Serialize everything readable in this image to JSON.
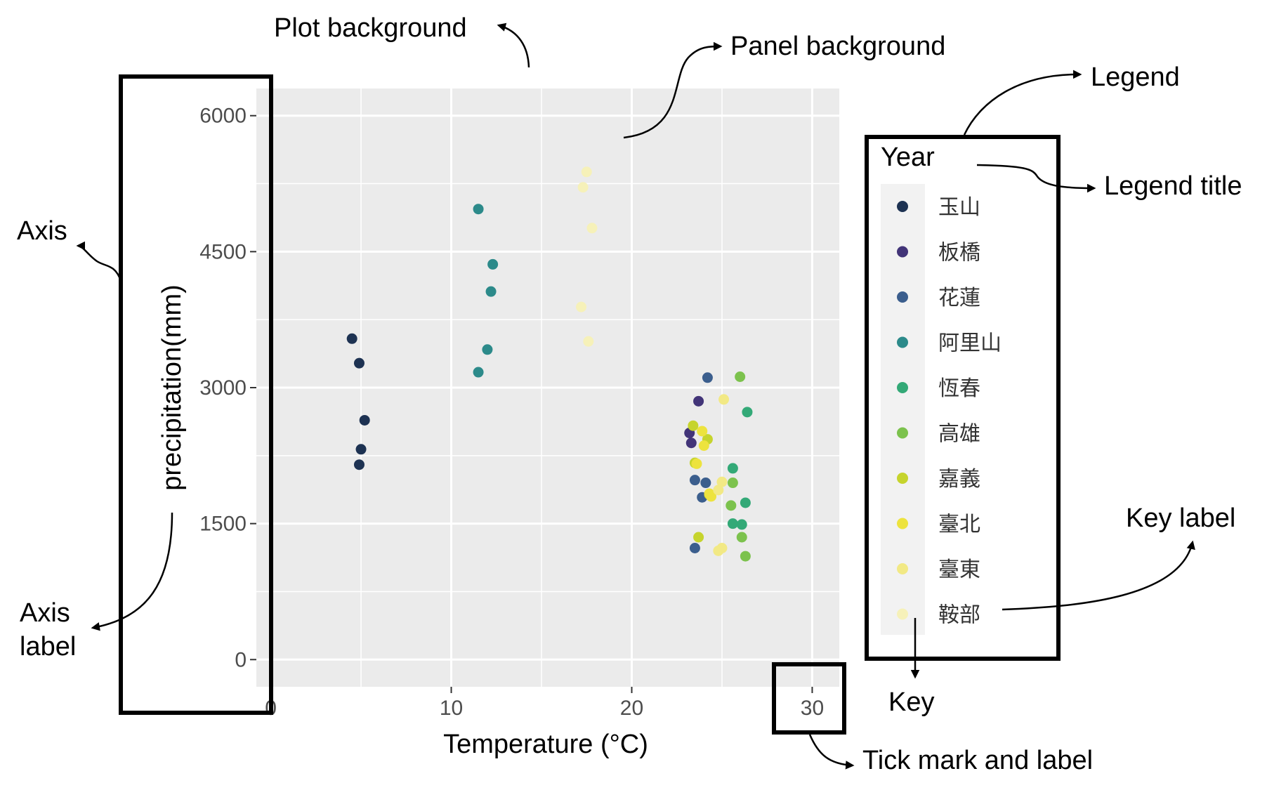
{
  "chart_data": {
    "type": "scatter",
    "title": "",
    "xlabel": "Temperature (°C)",
    "ylabel": "precipitation(mm)",
    "xlim": [
      -0.8,
      31.5
    ],
    "ylim": [
      -300,
      6300
    ],
    "x_ticks": [
      0,
      10,
      20,
      30
    ],
    "y_ticks": [
      0,
      1500,
      3000,
      4500,
      6000
    ],
    "x_tick_labels": [
      "0",
      "10",
      "20",
      "30"
    ],
    "y_tick_labels": [
      "0",
      "1500",
      "3000",
      "4500",
      "6000"
    ],
    "grid": true,
    "background": "#ebebeb",
    "legend": {
      "title": "Year",
      "placement": "right"
    },
    "series": [
      {
        "name": "玉山",
        "color": "#1d3252",
        "points": [
          [
            4.5,
            3540
          ],
          [
            4.9,
            3270
          ],
          [
            5.2,
            2640
          ],
          [
            5.0,
            2320
          ],
          [
            4.9,
            2150
          ]
        ]
      },
      {
        "name": "板橋",
        "color": "#423478",
        "points": [
          [
            23.2,
            2500
          ],
          [
            23.3,
            2390
          ],
          [
            23.7,
            2850
          ]
        ]
      },
      {
        "name": "花蓮",
        "color": "#3b5e8d",
        "points": [
          [
            24.2,
            3110
          ],
          [
            23.5,
            1980
          ],
          [
            24.1,
            1950
          ],
          [
            23.9,
            1790
          ],
          [
            23.5,
            1230
          ]
        ]
      },
      {
        "name": "阿里山",
        "color": "#2c8a8a",
        "points": [
          [
            11.5,
            4970
          ],
          [
            12.3,
            4360
          ],
          [
            12.2,
            4060
          ],
          [
            12.0,
            3420
          ],
          [
            11.5,
            3170
          ]
        ]
      },
      {
        "name": "恆春",
        "color": "#33a977",
        "points": [
          [
            26.4,
            2730
          ],
          [
            25.6,
            2110
          ],
          [
            26.3,
            1730
          ],
          [
            25.6,
            1500
          ],
          [
            26.1,
            1490
          ]
        ]
      },
      {
        "name": "高雄",
        "color": "#7cc24d",
        "points": [
          [
            26.0,
            3120
          ],
          [
            25.6,
            1950
          ],
          [
            25.5,
            1700
          ],
          [
            26.1,
            1350
          ],
          [
            26.3,
            1140
          ]
        ]
      },
      {
        "name": "嘉義",
        "color": "#c6d42d",
        "points": [
          [
            23.4,
            2580
          ],
          [
            24.2,
            2430
          ],
          [
            23.5,
            2170
          ],
          [
            24.3,
            1820
          ],
          [
            23.7,
            1350
          ]
        ]
      },
      {
        "name": "臺北",
        "color": "#ede33e",
        "points": [
          [
            23.9,
            2520
          ],
          [
            24.0,
            2360
          ],
          [
            23.6,
            2160
          ],
          [
            24.4,
            1800
          ],
          [
            24.3,
            1830
          ]
        ]
      },
      {
        "name": "臺東",
        "color": "#f2e985",
        "points": [
          [
            25.1,
            2870
          ],
          [
            25.0,
            1960
          ],
          [
            24.8,
            1870
          ],
          [
            25.0,
            1230
          ],
          [
            24.8,
            1200
          ]
        ]
      },
      {
        "name": "鞍部",
        "color": "#f6f1b9",
        "points": [
          [
            17.5,
            5380
          ],
          [
            17.3,
            5210
          ],
          [
            17.8,
            4760
          ],
          [
            17.2,
            3890
          ],
          [
            17.6,
            3510
          ]
        ]
      }
    ]
  },
  "annotations": {
    "plot_background": "Plot background",
    "panel_background": "Panel background",
    "legend": "Legend",
    "legend_title": "Legend title",
    "axis": "Axis",
    "axis_label_line1": "Axis",
    "axis_label_line2": "label",
    "key_label": "Key label",
    "key": "Key",
    "tick_mark_and_label": "Tick mark and label"
  }
}
